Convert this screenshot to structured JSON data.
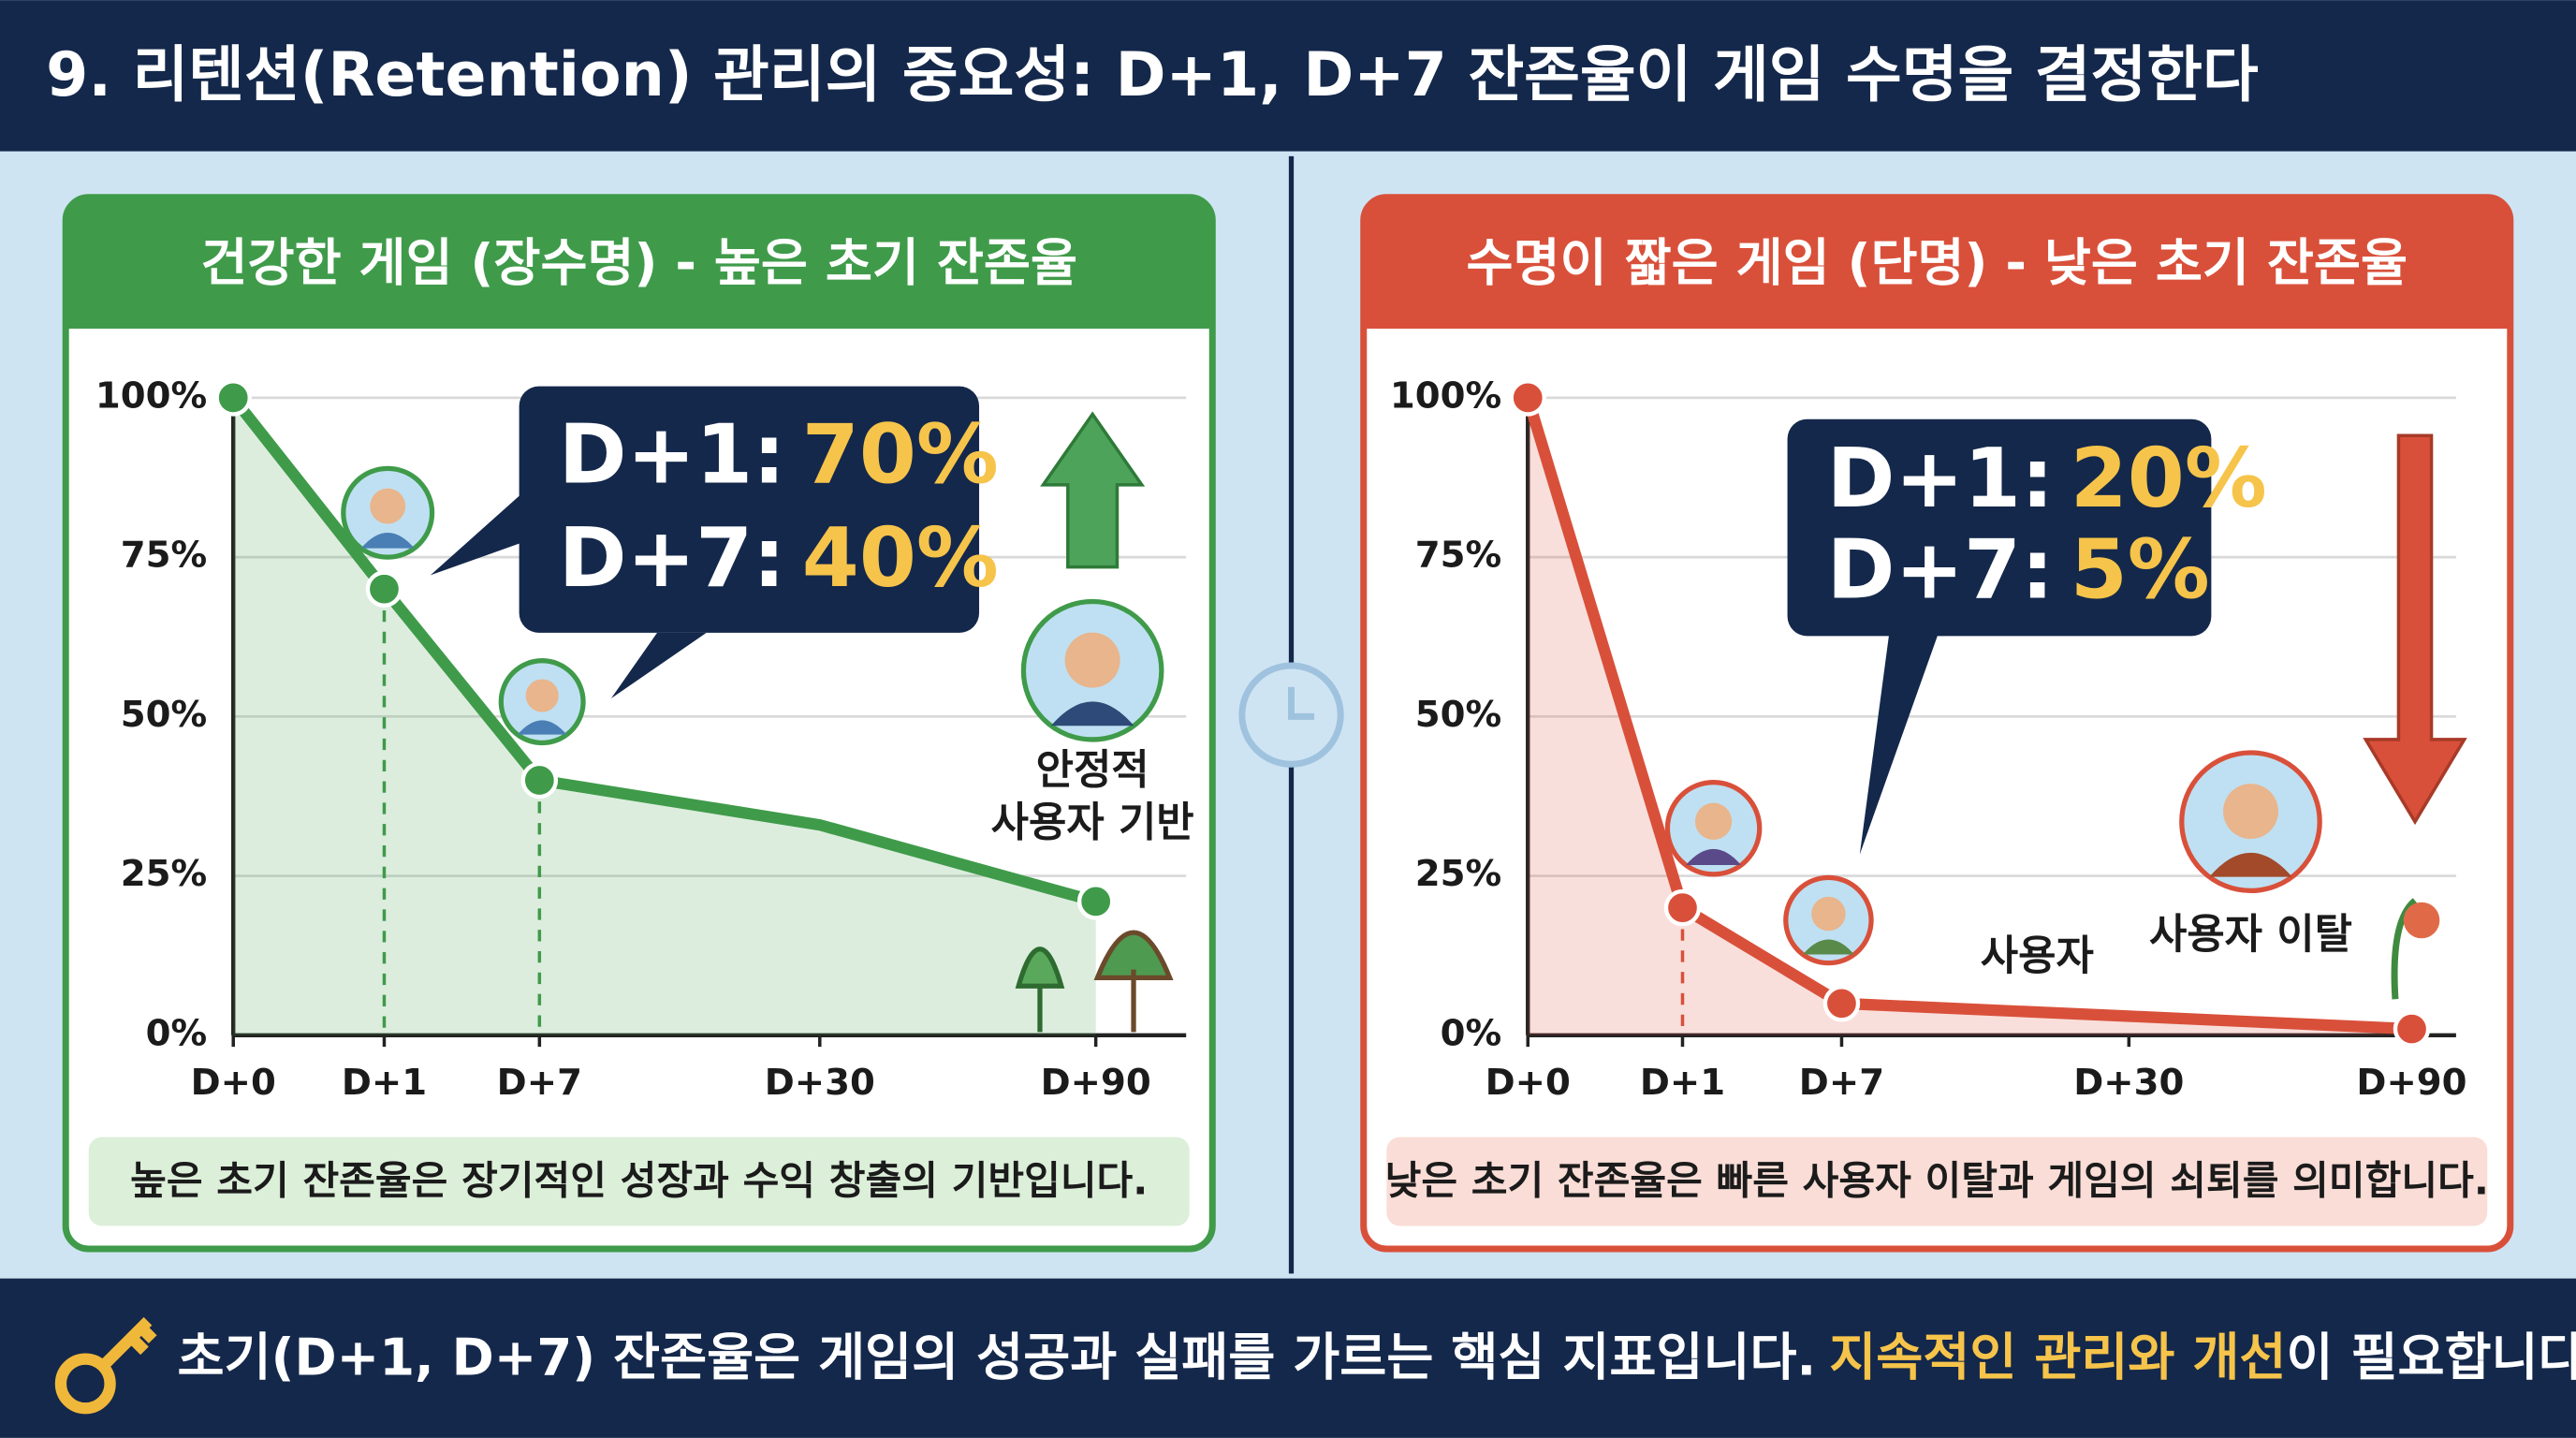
{
  "title": "9. 리텐션(Retention) 관리의 중요성: D+1, D+7 잔존율이 게임 수명을 결정한다",
  "chart_data": [
    {
      "type": "line",
      "title": "건강한 게임 (장수명) - 높은 초기 잔존율",
      "categories": [
        "D+0",
        "D+1",
        "D+7",
        "D+30",
        "D+90"
      ],
      "values": [
        100,
        70,
        40,
        33,
        21
      ],
      "color": "#3f9b4a",
      "ylim": [
        0,
        100
      ],
      "yticks": [
        {
          "value": 0,
          "label": "0%"
        },
        {
          "value": 25,
          "label": "25%"
        },
        {
          "value": 50,
          "label": "50%"
        },
        {
          "value": 75,
          "label": "75%"
        },
        {
          "value": 100,
          "label": "100%"
        }
      ],
      "grid": true,
      "callout": [
        {
          "label": "D+1:",
          "value": "70%"
        },
        {
          "label": "D+7:",
          "value": "40%"
        }
      ],
      "annotations": [
        "안정적",
        "사용자 기반"
      ],
      "note": "높은 초기 잔존율은 장기적인 성장과 수익 창출의 기반입니다."
    },
    {
      "type": "line",
      "title": "수명이 짧은 게임 (단명) - 낮은 초기 잔존율",
      "categories": [
        "D+0",
        "D+1",
        "D+7",
        "D+30",
        "D+90"
      ],
      "values": [
        100,
        20,
        5,
        3,
        1
      ],
      "color": "#d9503a",
      "ylim": [
        0,
        100
      ],
      "yticks": [
        {
          "value": 0,
          "label": "0%"
        },
        {
          "value": 25,
          "label": "25%"
        },
        {
          "value": 50,
          "label": "50%"
        },
        {
          "value": 75,
          "label": "75%"
        },
        {
          "value": 100,
          "label": "100%"
        }
      ],
      "grid": true,
      "callout": [
        {
          "label": "D+1:",
          "value": "20%"
        },
        {
          "label": "D+7:",
          "value": "5%"
        }
      ],
      "annotations": [
        "사용자",
        "사용자 이탈"
      ],
      "note": "낮은 초기 잔존율은 빠른 사용자 이탈과 게임의 쇠퇴를 의미합니다."
    }
  ],
  "footer": {
    "text": "초기(D+1, D+7) 잔존율은 게임의 성공과 실패를 가르는 핵심 지표입니다.",
    "highlight": "지속적인 관리와 개선",
    "tail": "이 필요합니다."
  }
}
